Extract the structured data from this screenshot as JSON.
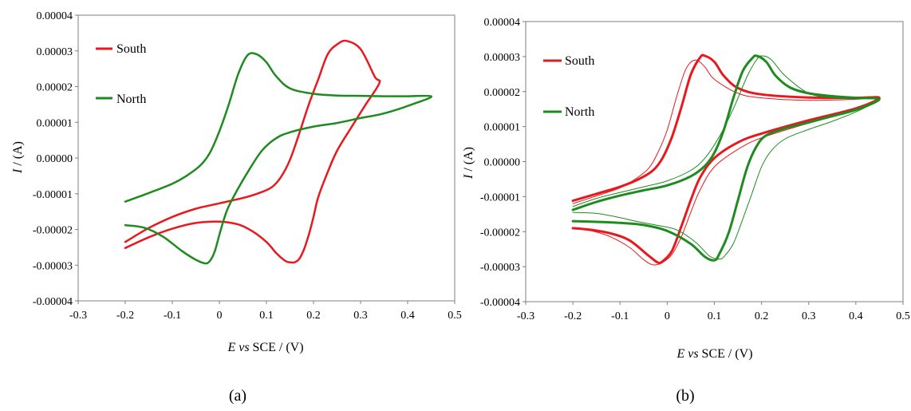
{
  "chart_data": [
    {
      "type": "line",
      "panel_label": "(a)",
      "xlabel_parts": [
        "E",
        " vs ",
        "SCE / (V)"
      ],
      "ylabel_parts": [
        "I",
        " / (A)"
      ],
      "xlim": [
        -0.3,
        0.5
      ],
      "ylim": [
        -4e-05,
        4e-05
      ],
      "xticks": [
        "-0.3",
        "-0.2",
        "-0.1",
        "0",
        "0.1",
        "0.2",
        "0.3",
        "0.4",
        "0.5"
      ],
      "yticks": [
        "0.00004",
        "0.00003",
        "0.00002",
        "0.00001",
        "0.00000",
        "-0.00001",
        "-0.00002",
        "-0.00003",
        "-0.00004"
      ],
      "legend": [
        "South",
        "North"
      ],
      "series": [
        {
          "name": "South",
          "color": "#e8191e",
          "width": 2.5,
          "x": [
            -0.2,
            -0.15,
            -0.1,
            -0.05,
            0.0,
            0.05,
            0.08,
            0.11,
            0.13,
            0.15,
            0.17,
            0.19,
            0.21,
            0.23,
            0.25,
            0.27,
            0.3,
            0.33,
            0.34,
            0.31,
            0.28,
            0.25,
            0.23,
            0.21,
            0.2,
            0.19,
            0.18,
            0.17,
            0.16,
            0.15,
            0.14,
            0.12,
            0.1,
            0.07,
            0.04,
            0.0,
            -0.05,
            -0.1,
            -0.15,
            -0.2
          ],
          "y": [
            -2.35e-05,
            -1.96e-05,
            -1.65e-05,
            -1.42e-05,
            -1.27e-05,
            -1.12e-05,
            -1e-05,
            -8.3e-06,
            -5.5e-06,
            -5e-07,
            7e-06,
            1.5e-05,
            2.2e-05,
            2.9e-05,
            3.18e-05,
            3.28e-05,
            3.05e-05,
            2.28e-05,
            2.1e-05,
            1.48e-05,
            8.5e-06,
            2e-06,
            -4e-06,
            -1.1e-05,
            -1.65e-05,
            -2.15e-05,
            -2.55e-05,
            -2.82e-05,
            -2.92e-05,
            -2.92e-05,
            -2.88e-05,
            -2.65e-05,
            -2.35e-05,
            -2.05e-05,
            -1.86e-05,
            -1.78e-05,
            -1.82e-05,
            -1.98e-05,
            -2.22e-05,
            -2.52e-05
          ]
        },
        {
          "name": "North",
          "color": "#1f8a1f",
          "width": 2.5,
          "x": [
            -0.2,
            -0.15,
            -0.1,
            -0.07,
            -0.04,
            -0.02,
            0.0,
            0.02,
            0.04,
            0.06,
            0.08,
            0.1,
            0.12,
            0.15,
            0.2,
            0.25,
            0.3,
            0.35,
            0.4,
            0.45,
            0.42,
            0.35,
            0.3,
            0.25,
            0.2,
            0.15,
            0.12,
            0.09,
            0.06,
            0.04,
            0.02,
            0.01,
            0.0,
            -0.01,
            -0.02,
            -0.03,
            -0.05,
            -0.08,
            -0.12,
            -0.16,
            -0.2
          ],
          "y": [
            -1.22e-05,
            -9.8e-06,
            -7.2e-06,
            -5e-06,
            -2e-06,
            1.5e-06,
            7.5e-06,
            1.5e-05,
            2.35e-05,
            2.88e-05,
            2.9e-05,
            2.68e-05,
            2.3e-05,
            1.95e-05,
            1.8e-05,
            1.75e-05,
            1.74e-05,
            1.73e-05,
            1.73e-05,
            1.73e-05,
            1.55e-05,
            1.25e-05,
            1.12e-05,
            9.8e-06,
            8.8e-06,
            7.2e-06,
            5.5e-06,
            2e-06,
            -4e-06,
            -8.5e-06,
            -1.35e-05,
            -1.7e-05,
            -2.15e-05,
            -2.62e-05,
            -2.88e-05,
            -2.95e-05,
            -2.85e-05,
            -2.6e-05,
            -2.2e-05,
            -1.95e-05,
            -1.88e-05
          ]
        }
      ]
    },
    {
      "type": "line",
      "panel_label": "(b)",
      "xlabel_parts": [
        "E",
        " vs ",
        "SCE / (V)"
      ],
      "ylabel_parts": [
        "I",
        " / (A)"
      ],
      "xlim": [
        -0.3,
        0.5
      ],
      "ylim": [
        -4e-05,
        4e-05
      ],
      "xticks": [
        "-0.3",
        "-0.2",
        "-0.1",
        "0",
        "0.1",
        "0.2",
        "0.3",
        "0.4",
        "0.5"
      ],
      "yticks": [
        "0.00004",
        "0.00003",
        "0.00002",
        "0.00001",
        "0.00000",
        "-0.00001",
        "-0.00002",
        "-0.00003",
        "-0.00004"
      ],
      "legend": [
        "South",
        "North"
      ],
      "series": [
        {
          "name": "South",
          "color": "#e8191e",
          "width": 3,
          "x": [
            -0.2,
            -0.15,
            -0.1,
            -0.06,
            -0.03,
            -0.01,
            0.01,
            0.03,
            0.05,
            0.07,
            0.08,
            0.1,
            0.12,
            0.15,
            0.2,
            0.3,
            0.4,
            0.45,
            0.4,
            0.3,
            0.2,
            0.15,
            0.1,
            0.07,
            0.05,
            0.03,
            0.01,
            -0.01,
            -0.02,
            -0.04,
            -0.08,
            -0.12,
            -0.16,
            -0.2
          ],
          "y": [
            -1.12e-05,
            -9.2e-06,
            -7.2e-06,
            -5e-06,
            -2.5e-06,
            1e-06,
            7e-06,
            1.55e-05,
            2.48e-05,
            2.98e-05,
            3.02e-05,
            2.85e-05,
            2.45e-05,
            2.1e-05,
            1.92e-05,
            1.83e-05,
            1.82e-05,
            1.82e-05,
            1.52e-05,
            1.18e-05,
            8e-06,
            5.5e-06,
            1e-06,
            -4.5e-06,
            -1.1e-05,
            -1.85e-05,
            -2.55e-05,
            -2.85e-05,
            -2.88e-05,
            -2.68e-05,
            -2.25e-05,
            -2.05e-05,
            -1.95e-05,
            -1.9e-05
          ]
        },
        {
          "name": "South (thin)",
          "color": "#e8191e",
          "width": 1,
          "x": [
            -0.2,
            -0.15,
            -0.1,
            -0.07,
            -0.04,
            -0.02,
            0.0,
            0.02,
            0.04,
            0.06,
            0.08,
            0.1,
            0.15,
            0.2,
            0.3,
            0.4,
            0.45,
            0.4,
            0.3,
            0.2,
            0.15,
            0.1,
            0.07,
            0.05,
            0.03,
            0.01,
            -0.01,
            -0.03,
            -0.05,
            -0.08,
            -0.12,
            -0.16,
            -0.2
          ],
          "y": [
            -1.2e-05,
            -9.8e-06,
            -7.5e-06,
            -5.2e-06,
            -2e-06,
            2.5e-06,
            9e-06,
            1.85e-05,
            2.65e-05,
            2.9e-05,
            2.7e-05,
            2.35e-05,
            1.95e-05,
            1.82e-05,
            1.75e-05,
            1.78e-05,
            1.8e-05,
            1.48e-05,
            1.1e-05,
            6.8e-06,
            3.5e-06,
            -1.5e-06,
            -8e-06,
            -1.45e-05,
            -2.15e-05,
            -2.65e-05,
            -2.88e-05,
            -2.95e-05,
            -2.8e-05,
            -2.45e-05,
            -2.15e-05,
            -1.98e-05,
            -1.92e-05
          ]
        },
        {
          "name": "North",
          "color": "#1f8a1f",
          "width": 3,
          "x": [
            -0.2,
            -0.15,
            -0.1,
            -0.05,
            0.0,
            0.05,
            0.08,
            0.1,
            0.12,
            0.14,
            0.16,
            0.18,
            0.19,
            0.21,
            0.23,
            0.26,
            0.3,
            0.35,
            0.4,
            0.45,
            0.4,
            0.35,
            0.3,
            0.25,
            0.21,
            0.19,
            0.17,
            0.15,
            0.13,
            0.11,
            0.1,
            0.08,
            0.05,
            0.0,
            -0.05,
            -0.1,
            -0.15,
            -0.2
          ],
          "y": [
            -1.38e-05,
            -1.15e-05,
            -9.7e-06,
            -8.2e-06,
            -6.8e-06,
            -4.2e-06,
            -1.2e-06,
            2.5e-06,
            9e-06,
            1.8e-05,
            2.58e-05,
            2.95e-05,
            3.02e-05,
            2.85e-05,
            2.45e-05,
            2.12e-05,
            1.95e-05,
            1.87e-05,
            1.82e-05,
            1.78e-05,
            1.48e-05,
            1.3e-05,
            1.12e-05,
            9.5e-06,
            7.5e-06,
            4.5e-06,
            -1.5e-06,
            -1.1e-05,
            -2.05e-05,
            -2.65e-05,
            -2.82e-05,
            -2.72e-05,
            -2.35e-05,
            -1.98e-05,
            -1.81e-05,
            -1.75e-05,
            -1.72e-05,
            -1.7e-05
          ]
        },
        {
          "name": "North (thin)",
          "color": "#1f8a1f",
          "width": 1,
          "x": [
            -0.2,
            -0.15,
            -0.1,
            -0.05,
            0.0,
            0.05,
            0.08,
            0.11,
            0.14,
            0.17,
            0.19,
            0.2,
            0.22,
            0.25,
            0.3,
            0.35,
            0.4,
            0.45,
            0.4,
            0.35,
            0.3,
            0.25,
            0.22,
            0.2,
            0.18,
            0.16,
            0.14,
            0.12,
            0.11,
            0.09,
            0.06,
            0.02,
            -0.02,
            -0.06,
            -0.1,
            -0.15,
            -0.2
          ],
          "y": [
            -1.28e-05,
            -1.05e-05,
            -8.8e-06,
            -7.2e-06,
            -5.5e-06,
            -2.5e-06,
            1e-06,
            7e-06,
            1.5e-05,
            2.45e-05,
            2.92e-05,
            3.02e-05,
            2.92e-05,
            2.45e-05,
            1.95e-05,
            1.83e-05,
            1.8e-05,
            1.78e-05,
            1.42e-05,
            1.15e-05,
            9.2e-06,
            6.5e-06,
            3e-06,
            -1.5e-06,
            -9e-06,
            -1.65e-05,
            -2.35e-05,
            -2.72e-05,
            -2.78e-05,
            -2.7e-05,
            -2.3e-05,
            -1.95e-05,
            -1.82e-05,
            -1.72e-05,
            -1.6e-05,
            -1.48e-05,
            -1.45e-05
          ]
        }
      ]
    }
  ]
}
